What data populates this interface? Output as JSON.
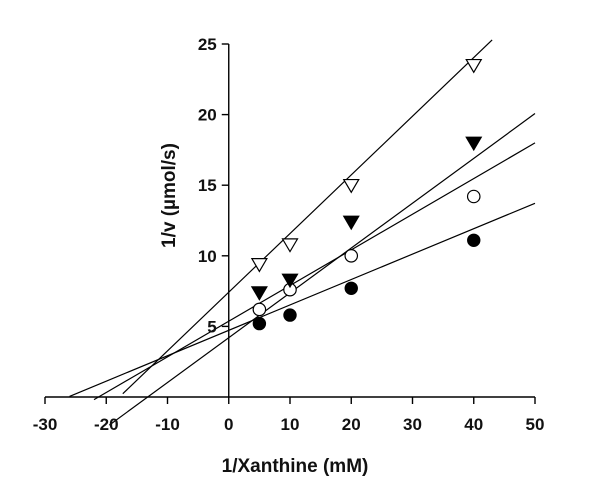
{
  "chart_data": {
    "type": "scatter",
    "title": "",
    "xlabel": "1/Xanthine (mM)",
    "ylabel": "1/v (µmol/s)",
    "xlim": [
      -30,
      50
    ],
    "ylim": [
      0,
      25
    ],
    "x_ticks": [
      -30,
      -20,
      -10,
      0,
      10,
      20,
      30,
      40,
      50
    ],
    "y_ticks": [
      5,
      10,
      15,
      20,
      25
    ],
    "x_tick_labels": [
      "-30",
      "-20",
      "-10",
      "0",
      "10",
      "20",
      "30",
      "40",
      "50"
    ],
    "y_tick_labels": [
      "5",
      "10",
      "15",
      "20",
      "25"
    ],
    "grid": false,
    "legend": "none",
    "series": [
      {
        "marker": "filled-circle",
        "x": [
          5,
          10,
          20,
          40
        ],
        "y": [
          5.2,
          5.8,
          7.7,
          11.1
        ],
        "fit": {
          "x_start": -26,
          "x_end": 50,
          "slope": 0.18,
          "intercept": 4.72
        }
      },
      {
        "marker": "open-circle",
        "x": [
          5,
          10,
          20,
          40
        ],
        "y": [
          6.2,
          7.6,
          10.0,
          14.2
        ],
        "fit": {
          "x_start": -22,
          "x_end": 50,
          "slope": 0.2525,
          "intercept": 5.37
        }
      },
      {
        "marker": "filled-triangle-down",
        "x": [
          5,
          10,
          20,
          40
        ],
        "y": [
          7.4,
          8.3,
          12.4,
          18.0
        ],
        "fit": {
          "x_start": -19.5,
          "x_end": 50,
          "slope": 0.3175,
          "intercept": 4.2
        }
      },
      {
        "marker": "open-triangle-down",
        "x": [
          5,
          10,
          20,
          40
        ],
        "y": [
          9.4,
          10.8,
          15.0,
          23.5
        ],
        "fit": {
          "x_start": -17.3,
          "x_end": 43,
          "slope": 0.4155,
          "intercept": 7.42
        }
      }
    ]
  }
}
